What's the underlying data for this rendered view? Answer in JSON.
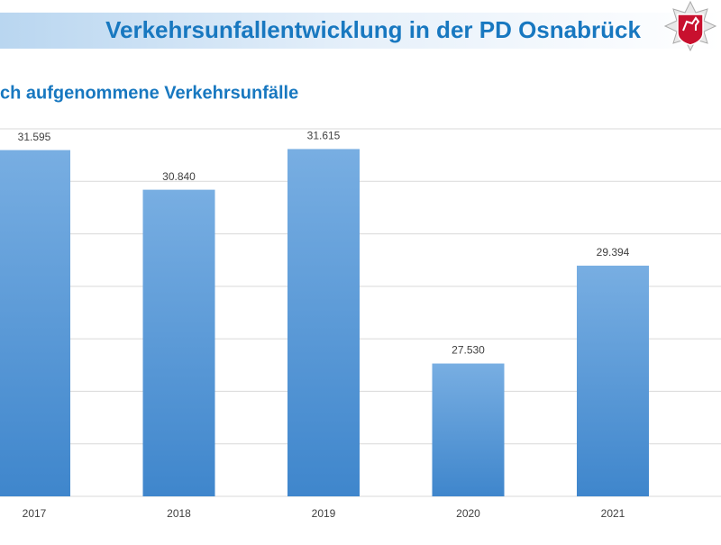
{
  "header": {
    "title": "Verkehrsunfallentwicklung in der PD Osnabrück"
  },
  "chart_data": {
    "type": "bar",
    "title": "ch aufgenommene Verkehrsunfälle",
    "categories": [
      "2017",
      "2018",
      "2019",
      "2020",
      "2021"
    ],
    "values": [
      31595,
      30840,
      31615,
      27530,
      29394
    ],
    "value_labels": [
      "31.595",
      "30.840",
      "31.615",
      "27.530",
      "29.394"
    ],
    "color": "#4a8fd4",
    "ylim": [
      25000,
      32000
    ],
    "yticks": [
      25000,
      26000,
      27000,
      28000,
      29000,
      30000,
      31000,
      32000
    ],
    "grid": true
  }
}
